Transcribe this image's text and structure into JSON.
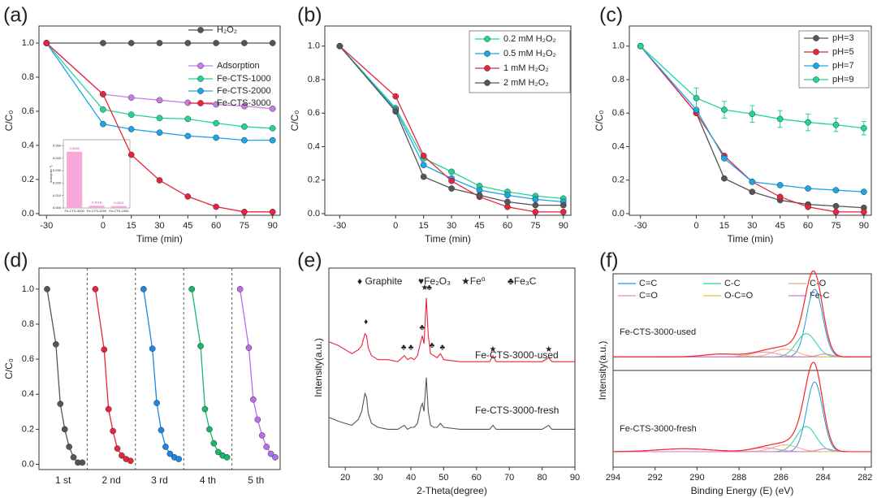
{
  "chart_data": [
    {
      "panel_label": "(a)",
      "type": "line",
      "xlabel": "Time (min)",
      "ylabel": "C/C₀",
      "x": [
        -30,
        0,
        15,
        30,
        45,
        60,
        75,
        90
      ],
      "xlim": [
        -34,
        94
      ],
      "xticks": [
        -30,
        0,
        15,
        30,
        45,
        60,
        75,
        90
      ],
      "ylim": [
        -0.01,
        1.1
      ],
      "yticks": [
        {
          "value": 0,
          "label": "0.0"
        },
        0.2,
        0.4,
        0.6,
        0.8,
        {
          "value": 1,
          "label": "1.0"
        }
      ],
      "legend": "upper right",
      "series": [
        {
          "name": "H₂O₂",
          "color": "#555555",
          "values": [
            1,
            1,
            1,
            1,
            1,
            1,
            1,
            1
          ]
        },
        {
          "name": "Adsorption",
          "color": "#c77ee8",
          "values": [
            1,
            0.7,
            0.68,
            0.665,
            0.65,
            0.64,
            0.63,
            0.615
          ]
        },
        {
          "name": "Fe-CTS-1000",
          "color": "#22d49a",
          "values": [
            1,
            0.61,
            0.58,
            0.56,
            0.555,
            0.53,
            0.51,
            0.5
          ]
        },
        {
          "name": "Fe-CTS-2000",
          "color": "#1aa6e8",
          "values": [
            1,
            0.525,
            0.495,
            0.475,
            0.455,
            0.445,
            0.43,
            0.43
          ]
        },
        {
          "name": "Fe-CTS-3000",
          "color": "#e8243c",
          "values": [
            1,
            0.7,
            0.345,
            0.195,
            0.1,
            0.04,
            0.01,
            0.01
          ]
        }
      ],
      "inset": {
        "type": "bar",
        "ylabel": "kobs(min⁻¹)",
        "categories": [
          "Fe-CTS-3000",
          "Fe-CTS-2000",
          "Fe-CTS-1000"
        ],
        "values": [
          0.0453,
          0.0018,
          0.0015
        ],
        "color": "#f7a8d8",
        "ylim": [
          0,
          0.055
        ],
        "yticks": [
          {
            "value": 0,
            "label": "0.000"
          },
          {
            "value": 0.01,
            "label": "0.010"
          },
          {
            "value": 0.02,
            "label": "0.020"
          },
          {
            "value": 0.03,
            "label": "0.030"
          },
          {
            "value": 0.04,
            "label": "0.040"
          },
          {
            "value": 0.05,
            "label": "0.050"
          }
        ]
      }
    },
    {
      "panel_label": "(b)",
      "type": "line",
      "xlabel": "Time (min)",
      "ylabel": "C/C₀",
      "x": [
        -30,
        0,
        15,
        30,
        45,
        60,
        75,
        90
      ],
      "xlim": [
        -38,
        94
      ],
      "xticks": [
        -30,
        0,
        15,
        30,
        45,
        60,
        75,
        90
      ],
      "ylim": [
        -0.01,
        1.12
      ],
      "yticks": [
        {
          "value": 0,
          "label": "0.0"
        },
        0.2,
        0.4,
        0.6,
        0.8,
        {
          "value": 1,
          "label": "1.0"
        }
      ],
      "legend": "upper right",
      "series": [
        {
          "name": "0.2 mM H₂O₂",
          "color": "#22d49a",
          "values": [
            1,
            0.63,
            0.33,
            0.25,
            0.165,
            0.13,
            0.105,
            0.09
          ]
        },
        {
          "name": "0.5 mM H₂O₂",
          "color": "#1aa6e8",
          "values": [
            1,
            0.62,
            0.29,
            0.21,
            0.14,
            0.11,
            0.085,
            0.07
          ]
        },
        {
          "name": "1 mM H₂O₂",
          "color": "#e8243c",
          "values": [
            1,
            0.7,
            0.345,
            0.195,
            0.1,
            0.04,
            0.01,
            0.01
          ]
        },
        {
          "name": "2 mM H₂O₂",
          "color": "#555555",
          "values": [
            1,
            0.61,
            0.22,
            0.15,
            0.11,
            0.07,
            0.05,
            0.05
          ]
        }
      ]
    },
    {
      "panel_label": "(c)",
      "type": "line",
      "xlabel": "Time (min)",
      "ylabel": "C/C₀",
      "x": [
        -30,
        0,
        15,
        30,
        45,
        60,
        75,
        90
      ],
      "xlim": [
        -36,
        94
      ],
      "xticks": [
        -30,
        0,
        15,
        30,
        45,
        60,
        75,
        90
      ],
      "ylim": [
        -0.01,
        1.12
      ],
      "yticks": [
        {
          "value": 0,
          "label": "0.0"
        },
        0.2,
        0.4,
        0.6,
        0.8,
        {
          "value": 1,
          "label": "1.0"
        }
      ],
      "legend": "upper right",
      "series": [
        {
          "name": "pH=3",
          "color": "#555555",
          "values": [
            1,
            0.6,
            0.21,
            0.13,
            0.08,
            0.055,
            0.045,
            0.035
          ]
        },
        {
          "name": "pH=5",
          "color": "#e8243c",
          "values": [
            1,
            0.6,
            0.345,
            0.19,
            0.1,
            0.04,
            0.01,
            0.01
          ]
        },
        {
          "name": "pH=7",
          "color": "#1aa6e8",
          "values": [
            1,
            0.62,
            0.33,
            0.19,
            0.17,
            0.15,
            0.14,
            0.13
          ]
        },
        {
          "name": "pH=9",
          "color": "#22d49a",
          "values": [
            1,
            0.69,
            0.62,
            0.595,
            0.565,
            0.545,
            0.53,
            0.51
          ],
          "errors": [
            0,
            0.06,
            0.05,
            0.05,
            0.05,
            0.05,
            0.04,
            0.04
          ]
        }
      ]
    },
    {
      "panel_label": "(d)",
      "type": "cycle",
      "ylabel": "C/C₀",
      "categories": [
        "1 st",
        "2 nd",
        "3 rd",
        "4 th",
        "5 th"
      ],
      "x": [
        -30,
        0,
        15,
        30,
        45,
        60,
        75,
        90
      ],
      "xlim": [
        -30,
        90
      ],
      "ylim": [
        -0.03,
        1.12
      ],
      "yticks": [
        {
          "value": 0,
          "label": "0.0"
        },
        0.2,
        0.4,
        0.6,
        0.8,
        {
          "value": 1,
          "label": "1.0"
        }
      ],
      "series": [
        {
          "color": "#555555",
          "values": [
            1,
            0.685,
            0.345,
            0.2,
            0.1,
            0.04,
            0.01,
            0.01
          ]
        },
        {
          "color": "#e8243c",
          "values": [
            1,
            0.655,
            0.315,
            0.19,
            0.09,
            0.05,
            0.03,
            0.02
          ]
        },
        {
          "color": "#1a86e8",
          "values": [
            1,
            0.66,
            0.35,
            0.195,
            0.1,
            0.06,
            0.04,
            0.03
          ]
        },
        {
          "color": "#16b86a",
          "values": [
            1,
            0.675,
            0.315,
            0.2,
            0.12,
            0.07,
            0.05,
            0.04
          ]
        },
        {
          "color": "#b86ee8",
          "values": [
            1,
            0.665,
            0.37,
            0.255,
            0.165,
            0.1,
            0.06,
            0.04
          ]
        }
      ]
    },
    {
      "panel_label": "(e)",
      "type": "spectrum",
      "xlabel": "2-Theta(degree)",
      "ylabel": "Intensity(a.u.)",
      "legend_items": [
        "♦ Graphite",
        "♥Fe₂O₃",
        "★Fe⁰",
        "♣Fe₃C"
      ],
      "xlim": [
        15,
        90
      ],
      "xticks": [
        20,
        30,
        40,
        50,
        60,
        70,
        80,
        90
      ],
      "ylim": [
        0,
        100
      ],
      "x": [
        15,
        18,
        20,
        22,
        24,
        25,
        26,
        26.5,
        27,
        28,
        30,
        33,
        36,
        38,
        39,
        40,
        41,
        42,
        43,
        43.5,
        44,
        44.7,
        45.3,
        46,
        47,
        48,
        49,
        50,
        55,
        60,
        64,
        65,
        66,
        70,
        75,
        80,
        82,
        83,
        85,
        90
      ],
      "series": [
        {
          "name": "Fe-CTS-3000-used",
          "color": "#e8243c",
          "values": [
            63,
            61,
            59,
            57,
            59,
            61,
            67,
            66,
            60,
            56,
            54,
            54,
            53,
            56,
            54,
            55,
            54,
            56,
            63,
            66,
            62,
            85,
            66,
            57,
            56,
            55,
            57,
            54,
            53,
            53,
            53,
            56,
            53,
            53,
            53,
            53,
            55,
            53,
            53,
            53
          ]
        },
        {
          "name": "Fe-CTS-3000-fresh",
          "color": "#555555",
          "values": [
            25,
            23,
            22,
            21,
            24,
            28,
            37,
            35,
            27,
            22,
            20,
            19,
            19,
            21,
            19,
            20,
            20,
            22,
            30,
            32,
            28,
            45,
            28,
            21,
            20,
            20,
            22,
            20,
            19,
            19,
            19,
            21,
            19,
            19,
            19,
            19,
            21,
            19,
            19,
            19
          ]
        }
      ],
      "peak_markers": [
        {
          "label": "♦",
          "x": 26.3,
          "y": 73
        },
        {
          "label": "♣",
          "x": 37.8,
          "y": 60
        },
        {
          "label": "♣",
          "x": 40,
          "y": 60
        },
        {
          "label": "♣",
          "x": 43.4,
          "y": 70
        },
        {
          "label": "★",
          "x": 44.2,
          "y": 90
        },
        {
          "label": "♣",
          "x": 45.6,
          "y": 90
        },
        {
          "label": "♣",
          "x": 46.4,
          "y": 61
        },
        {
          "label": "♣",
          "x": 49.6,
          "y": 60
        },
        {
          "label": "★",
          "x": 65,
          "y": 59
        },
        {
          "label": "★",
          "x": 82,
          "y": 59
        }
      ]
    },
    {
      "panel_label": "(f)",
      "type": "xps",
      "xlabel": "Binding Energy (E) (eV)",
      "ylabel": "Intensity(a.u.)",
      "xlim": [
        294,
        281.7
      ],
      "xticks": [
        294,
        292,
        290,
        288,
        286,
        284,
        282
      ],
      "ylim": [
        0,
        100
      ],
      "envelope_color": "#ff2a2a",
      "components": [
        {
          "name": "C=C",
          "color": "#1f9be0"
        },
        {
          "name": "C-C",
          "color": "#1dd3a0"
        },
        {
          "name": "C-O",
          "color": "#f4a582"
        },
        {
          "name": "C=O",
          "color": "#f08cb0"
        },
        {
          "name": "O-C=O",
          "color": "#e8c547"
        },
        {
          "name": "Fe-C",
          "color": "#c77ae0"
        }
      ],
      "spectra": [
        {
          "name": "Fe-CTS-3000-used",
          "background": 14,
          "centers": [
            284.4,
            284.8,
            285.8,
            286.8,
            288.8,
            283.9
          ],
          "heights": [
            70,
            24,
            8,
            5,
            3,
            3
          ],
          "fwhm": [
            0.9,
            1.1,
            1.4,
            1.5,
            2,
            0.8
          ]
        },
        {
          "name": "Fe-CTS-3000-fresh",
          "background": 16,
          "centers": [
            284.4,
            284.8,
            285.8,
            286.8,
            290.6,
            283.9
          ],
          "heights": [
            72,
            26,
            7,
            4,
            3,
            3
          ],
          "fwhm": [
            0.9,
            1.1,
            1.4,
            1.5,
            3,
            0.8
          ]
        }
      ]
    }
  ]
}
